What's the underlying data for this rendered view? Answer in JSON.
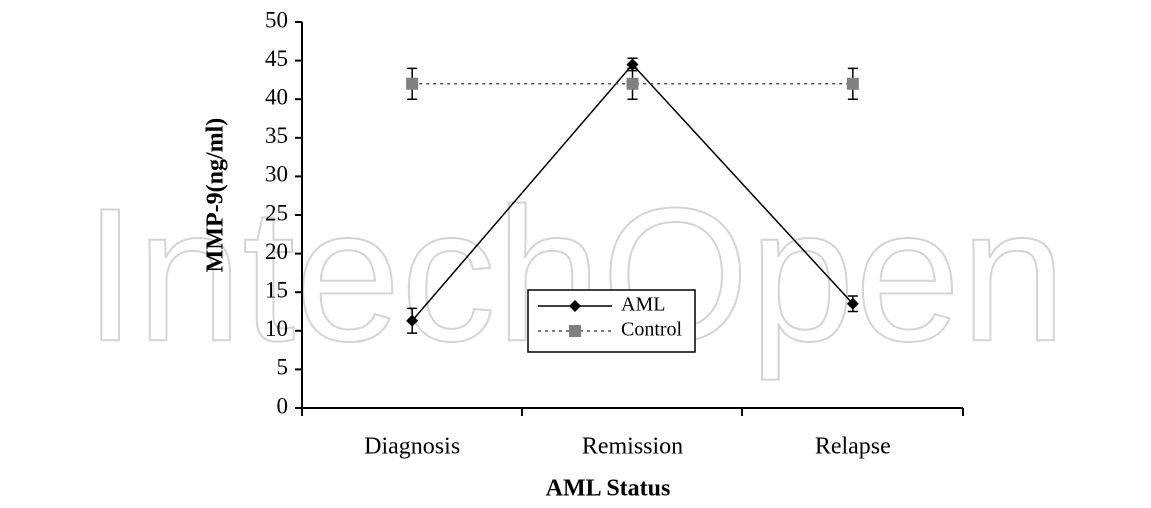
{
  "chart_data": {
    "type": "line",
    "watermark": "IntechOpen",
    "y_label": "MMP-9(ng/ml)",
    "x_label": "AML Status",
    "categories": [
      "Diagnosis",
      "Remission",
      "Relapse"
    ],
    "series": [
      {
        "name": "AML",
        "color": "#000000",
        "marker": "diamond",
        "dash": "solid",
        "values": [
          11.3,
          44.5,
          13.5
        ],
        "errors": [
          1.6,
          0.8,
          1.0
        ]
      },
      {
        "name": "Control",
        "color": "#808080",
        "marker": "square",
        "dash": "dotted",
        "values": [
          42,
          42,
          42
        ],
        "errors": [
          2,
          2,
          2
        ]
      }
    ],
    "ylim": [
      0,
      50
    ],
    "yticks": [
      0,
      5,
      10,
      15,
      20,
      25,
      30,
      35,
      40,
      45,
      50
    ]
  }
}
